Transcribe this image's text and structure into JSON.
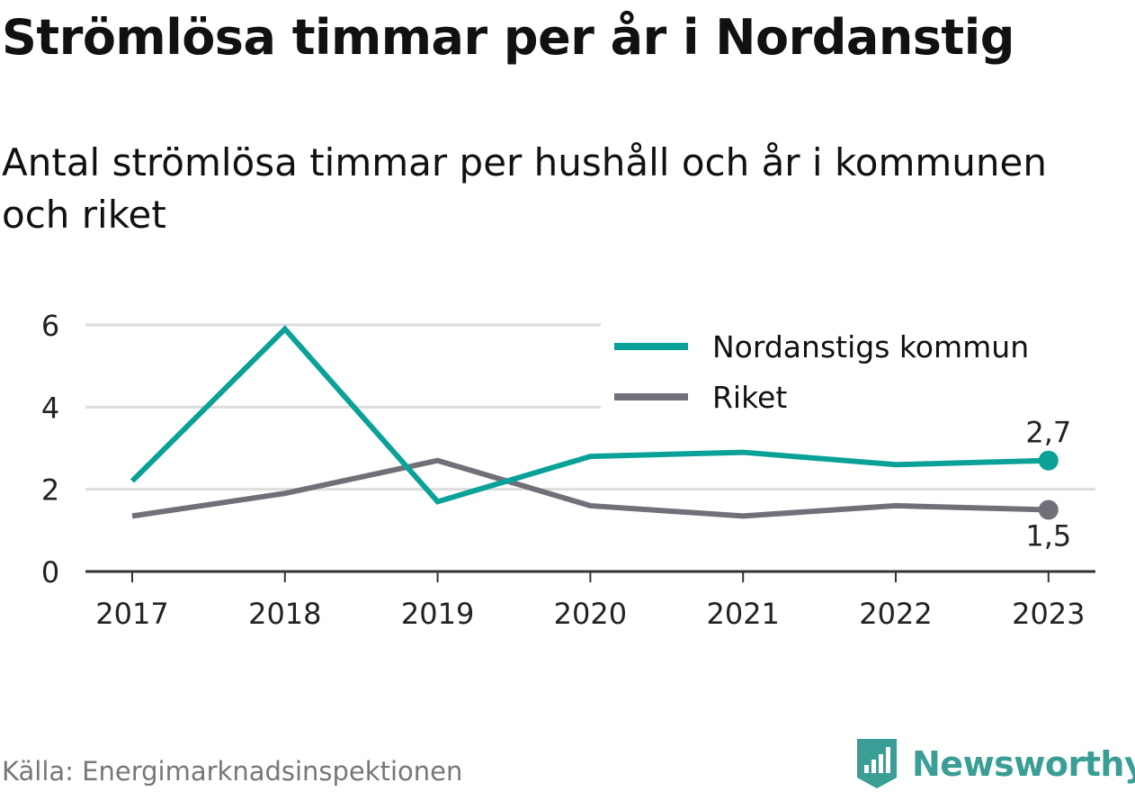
{
  "title": "Strömlösa timmar per år i Nordanstig",
  "subtitle": "Antal strömlösa timmar per hushåll och år i kommunen och riket",
  "source": "Källa: Energimarknadsinspektionen",
  "brand": "Newsworthy",
  "colors": {
    "kommun": "#0aa198",
    "riket": "#717078",
    "grid": "#dddddd",
    "axis": "#333333",
    "brand": "#3a9e96"
  },
  "chart_data": {
    "type": "line",
    "categories": [
      "2017",
      "2018",
      "2019",
      "2020",
      "2021",
      "2022",
      "2023"
    ],
    "ylim": [
      0,
      6
    ],
    "yticks": [
      "0",
      "2",
      "4",
      "6"
    ],
    "grid": true,
    "legend": "top-right",
    "series": [
      {
        "name": "Nordanstigs kommun",
        "values": [
          2.2,
          5.9,
          1.7,
          2.8,
          2.9,
          2.6,
          2.7
        ],
        "end_label": "2,7"
      },
      {
        "name": "Riket",
        "values": [
          1.35,
          1.9,
          2.7,
          1.6,
          1.35,
          1.6,
          1.5
        ],
        "end_label": "1,5"
      }
    ]
  }
}
